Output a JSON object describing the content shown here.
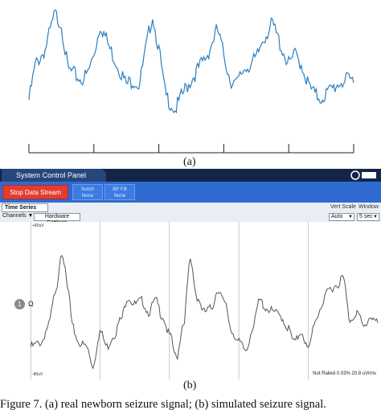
{
  "panel_a": {
    "label": "(a)"
  },
  "panel_b": {
    "label": "(b)"
  },
  "caption": "Figure 7. (a) real newborn seizure signal; (b) simulated seizure signal.",
  "app": {
    "title": "System Control Panel",
    "stop_button": "Stop Data Stream",
    "notch": {
      "label": "Notch",
      "value": "None"
    },
    "bp_filter": {
      "label": "BP Filt",
      "value": "None"
    },
    "view_tab": "Time Series",
    "channels_label": "Channels ▼",
    "hardware_button": "Hardware Settings",
    "vert_scale": {
      "label": "Vert Scale",
      "value": "Auto"
    },
    "window": {
      "label": "Window",
      "value": "5 sec"
    },
    "channel_number": "1",
    "channel_symbol": "Ω",
    "y_top_label": "+80uV",
    "y_bottom_label": "-80uV",
    "status_text": "Not Railed 0.03% 20.8 uVrms"
  },
  "colors": {
    "signal_a": "#2a7fc0",
    "signal_b": "#555555",
    "toolbar": "#2f6bd1",
    "titlebar": "#13264a",
    "stop": "#e23e2e"
  },
  "chart_data": [
    {
      "type": "line",
      "x": [
        0,
        0.02,
        0.05,
        0.08,
        0.1,
        0.12,
        0.14,
        0.16,
        0.18,
        0.2,
        0.22,
        0.25,
        0.28,
        0.3,
        0.32,
        0.34,
        0.36,
        0.38,
        0.4,
        0.42,
        0.45,
        0.48,
        0.5,
        0.52,
        0.55,
        0.58,
        0.6,
        0.62,
        0.64,
        0.66,
        0.68,
        0.7,
        0.72,
        0.75,
        0.78,
        0.8,
        0.82,
        0.84,
        0.86,
        0.88,
        0.9,
        0.93,
        0.96,
        1.0
      ],
      "values": [
        0.1,
        0.45,
        0.6,
        0.95,
        0.85,
        0.4,
        0.35,
        0.3,
        0.35,
        0.55,
        0.85,
        0.6,
        0.4,
        0.25,
        0.3,
        0.25,
        0.6,
        0.95,
        0.6,
        0.15,
        0.0,
        0.2,
        0.3,
        0.4,
        0.55,
        0.8,
        0.55,
        0.3,
        0.25,
        0.4,
        0.45,
        0.5,
        0.7,
        0.85,
        0.6,
        0.45,
        0.55,
        0.45,
        0.25,
        0.15,
        0.12,
        0.2,
        0.28,
        0.3
      ],
      "ticks": 6,
      "xlabel": "",
      "ylabel": "",
      "title": ""
    },
    {
      "type": "line",
      "x": [
        0,
        0.03,
        0.05,
        0.07,
        0.09,
        0.11,
        0.12,
        0.14,
        0.16,
        0.18,
        0.2,
        0.22,
        0.24,
        0.26,
        0.28,
        0.3,
        0.32,
        0.34,
        0.36,
        0.38,
        0.4,
        0.42,
        0.44,
        0.46,
        0.48,
        0.5,
        0.52,
        0.54,
        0.56,
        0.58,
        0.6,
        0.62,
        0.64,
        0.66,
        0.68,
        0.7,
        0.72,
        0.74,
        0.76,
        0.78,
        0.8,
        0.82,
        0.84,
        0.86,
        0.88,
        0.9,
        0.92,
        0.94,
        0.96,
        0.98,
        1.0
      ],
      "values": [
        -0.55,
        -0.5,
        -0.3,
        0.1,
        0.7,
        0.15,
        -0.3,
        -0.5,
        -0.55,
        -0.8,
        -0.35,
        -0.55,
        -0.4,
        -0.2,
        0.1,
        0.0,
        0.05,
        -0.1,
        0.05,
        -0.15,
        -0.4,
        -0.7,
        -0.25,
        0.55,
        0.1,
        -0.1,
        -0.05,
        0.2,
        0.0,
        -0.35,
        -0.5,
        -0.6,
        -0.3,
        0.05,
        -0.05,
        -0.1,
        -0.15,
        -0.3,
        -0.5,
        -0.35,
        -0.6,
        -0.2,
        0.0,
        0.2,
        0.25,
        0.35,
        -0.2,
        -0.1,
        -0.3,
        -0.15,
        -0.25
      ],
      "vertical_gridlines": 4,
      "xlabel": "",
      "ylabel": "",
      "title": ""
    }
  ]
}
